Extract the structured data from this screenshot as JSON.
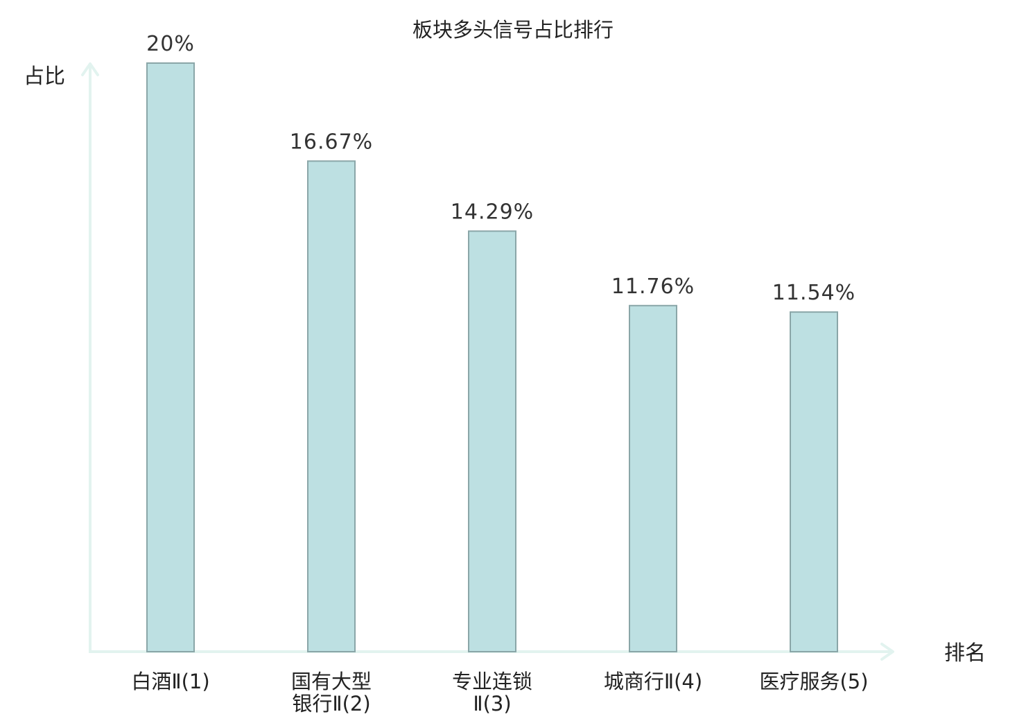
{
  "chart_data": {
    "type": "bar",
    "title": "板块多头信号占比排行",
    "xlabel": "排名",
    "ylabel": "占比",
    "categories": [
      [
        "白酒Ⅱ(1)"
      ],
      [
        "国有大型",
        "银行Ⅱ(2)"
      ],
      [
        "专业连锁",
        "Ⅱ(3)"
      ],
      [
        "城商行Ⅱ(4)"
      ],
      [
        "医疗服务(5)"
      ]
    ],
    "values": [
      20,
      16.67,
      14.29,
      11.76,
      11.54
    ],
    "value_labels": [
      "20%",
      "16.67%",
      "14.29%",
      "11.76%",
      "11.54%"
    ],
    "ylim": [
      0,
      20
    ],
    "grid": false,
    "colors": {
      "bar_fill": "#bde0e2",
      "bar_stroke": "#8aa6a8",
      "axis": "#e2f3ef",
      "highlight_label": "#e02020",
      "label": "#222222"
    },
    "highlight_index": 0
  }
}
